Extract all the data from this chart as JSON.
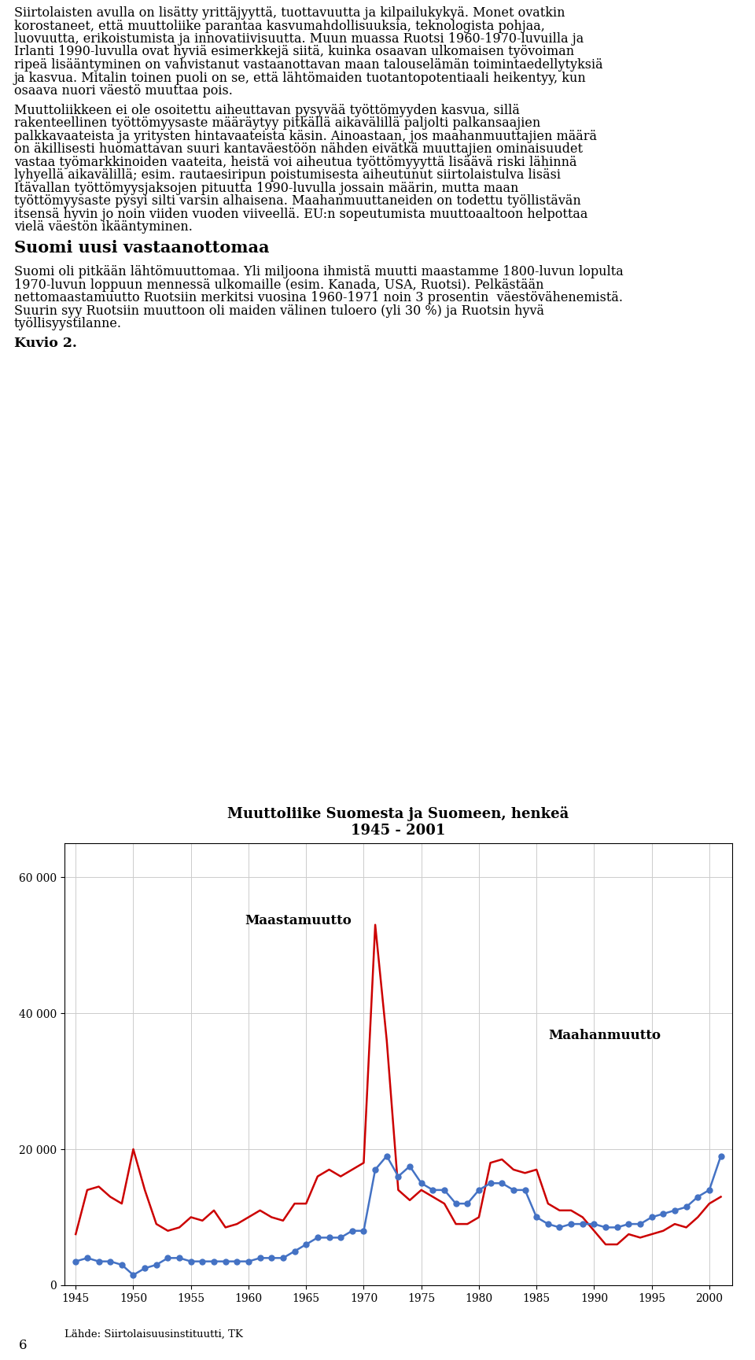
{
  "title_line1": "Muuttoliike Suomesta ja Suomeen, henkeä",
  "title_line2": "1945 - 2001",
  "source": "Lähde: Siirtolaisuusinstituutti, TK",
  "label_maastamuutto": "Maastamuutto",
  "label_maahanmuutto": "Maahanmuutto",
  "kuvio_label": "Kuvio 2.",
  "page_number": "6",
  "ylim": [
    0,
    65000
  ],
  "yticks": [
    0,
    20000,
    40000,
    60000
  ],
  "ytick_labels": [
    "0",
    "20 000",
    "40 000",
    "60 000"
  ],
  "xticks": [
    1945,
    1950,
    1955,
    1960,
    1965,
    1970,
    1975,
    1980,
    1985,
    1990,
    1995,
    2000
  ],
  "maastamuutto": {
    "years": [
      1945,
      1946,
      1947,
      1948,
      1949,
      1950,
      1951,
      1952,
      1953,
      1954,
      1955,
      1956,
      1957,
      1958,
      1959,
      1960,
      1961,
      1962,
      1963,
      1964,
      1965,
      1966,
      1967,
      1968,
      1969,
      1970,
      1971,
      1972,
      1973,
      1974,
      1975,
      1976,
      1977,
      1978,
      1979,
      1980,
      1981,
      1982,
      1983,
      1984,
      1985,
      1986,
      1987,
      1988,
      1989,
      1990,
      1991,
      1992,
      1993,
      1994,
      1995,
      1996,
      1997,
      1998,
      1999,
      2000,
      2001
    ],
    "values": [
      7500,
      14000,
      14500,
      13000,
      12000,
      20000,
      14000,
      9000,
      8000,
      8500,
      10000,
      9500,
      11000,
      8500,
      9000,
      10000,
      11000,
      10000,
      9500,
      12000,
      12000,
      16000,
      17000,
      16000,
      17000,
      18000,
      53000,
      36000,
      14000,
      12500,
      14000,
      13000,
      12000,
      9000,
      9000,
      10000,
      18000,
      18500,
      17000,
      16500,
      17000,
      12000,
      11000,
      11000,
      10000,
      8000,
      6000,
      6000,
      7500,
      7000,
      7500,
      8000,
      9000,
      8500,
      10000,
      12000,
      13000
    ]
  },
  "maahanmuutto": {
    "years": [
      1945,
      1946,
      1947,
      1948,
      1949,
      1950,
      1951,
      1952,
      1953,
      1954,
      1955,
      1956,
      1957,
      1958,
      1959,
      1960,
      1961,
      1962,
      1963,
      1964,
      1965,
      1966,
      1967,
      1968,
      1969,
      1970,
      1971,
      1972,
      1973,
      1974,
      1975,
      1976,
      1977,
      1978,
      1979,
      1980,
      1981,
      1982,
      1983,
      1984,
      1985,
      1986,
      1987,
      1988,
      1989,
      1990,
      1991,
      1992,
      1993,
      1994,
      1995,
      1996,
      1997,
      1998,
      1999,
      2000,
      2001
    ],
    "values": [
      3500,
      4000,
      3500,
      3500,
      3000,
      1500,
      2500,
      3000,
      4000,
      4000,
      3500,
      3500,
      3500,
      3500,
      3500,
      3500,
      4000,
      4000,
      4000,
      5000,
      6000,
      7000,
      7000,
      7000,
      8000,
      8000,
      17000,
      19000,
      16000,
      17500,
      15000,
      14000,
      14000,
      12000,
      12000,
      14000,
      15000,
      15000,
      14000,
      14000,
      10000,
      9000,
      8500,
      9000,
      9000,
      9000,
      8500,
      8500,
      9000,
      9000,
      10000,
      10500,
      11000,
      11500,
      13000,
      14000,
      19000
    ]
  },
  "text_para1": "Siirtolaisten avulla on lisätty yrittäjyyttä, tuottavuutta ja kilpailukykyä. Monet ovatkin korostaneet, että muuttoliike parantaa kasvumahdollisuuksia, teknologista pohjaa, luovuutta, erikoistumista ja innovatiivisuutta. Muun muassa Ruotsi 1960-1970-luvuilla ja Irlanti 1990-luvulla ovat hyviä esimerkkejä siitä, kuinka osaavan ulkomaisen työvoiman ripeä lisääntyminen on vahvistanut vastaanottavan maan talouselämän toimintaedellytyksiä ja kasvua. Mitalin toinen puoli on se, että lähtömaiden tuotantopotentiaali heikentyy, kun osaava nuori väestö muuttaa pois.",
  "text_para2": "Muuttoliikkeen ei ole osoitettu aiheuttavan pysyvää työttömyyden kasvua, sillä rakenteellinen työttömyysaste määräytyy pitkällä aikavälillä paljolti palkansaajien palkkavaateista ja yritysten hintavaateista käsin. Ainoastaan, jos maahanmuuttajien määrä on äkillisesti huomattavan suuri kantaväestöön nähden eivätkä muuttajien ominaisuudet vastaa työmarkkinoiden vaateita, heistä voi aiheutua työttömyyyttä lisäävä riski lähinnä lyhyellä aikavälillä; esim. rautaesiripun poistumisesta aiheutunut siirtolaistulva lisäsi Itävallan työttömyysjaksojen pituutta 1990-luvulla jossain määrin, mutta maan työttömyysaste pysyi silti varsin alhaisena. Maahanmuuttaneiden on todettu työllistävän itsensä hyvin jo noin viiden vuoden viiveellä. EU:n sopeutumista muuttoaaltoon helpottaa vielä väestön ikääntyminen.",
  "text_heading": "Suomi uusi vastaanottomaa",
  "text_para4": "Suomi oli pitkään lähtömuuttomaa. Yli miljoona ihmistä muutti maastamme 1800-luvun lopulta 1970-luvun loppuun mennessä ulkomaille (esim. Kanada, USA, Ruotsi). Pelkästään nettomaastamuutto Ruotsiin merkitsi vuosina 1960-1971 noin 3 prosentin  väestövähenemistä. Suurin syy Ruotsiin muuttoon oli maiden välinen tuloero (yli 30 %) ja Ruotsin hyvä työllisyystilanne.",
  "background_color": "#ffffff",
  "red_color": "#cc0000",
  "blue_color": "#4472c4",
  "grid_color": "#cccccc",
  "text_color": "#000000"
}
